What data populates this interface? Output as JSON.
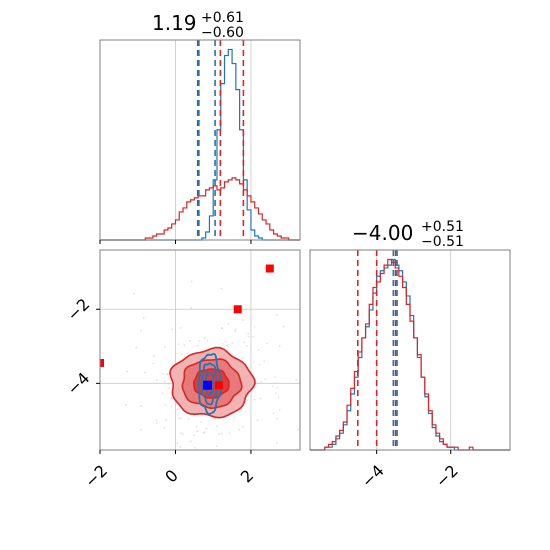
{
  "colors": {
    "red": "#d62728",
    "blue": "#1f77b4",
    "red_fill_outer": "#f2b3b3",
    "red_fill_mid": "#e8797a",
    "red_fill_inner": "#de3a3b",
    "marker_red": "#ff0000",
    "marker_blue": "#0000ff",
    "grid": "#c8c8c8",
    "axis": "#808080"
  },
  "chart_data": [
    {
      "panel": "marginal-x",
      "type": "histogram",
      "title": {
        "value": "1.19",
        "upper": "+0.61",
        "lower": "−0.60"
      },
      "xlim": [
        -2,
        3.3
      ],
      "grid": true,
      "series": [
        {
          "name": "",
          "color": "#1f77b4",
          "x_start": -2.0,
          "bin_width": 0.1,
          "counts": [
            0,
            0,
            0,
            0,
            0,
            0,
            0,
            0,
            0,
            0,
            0,
            0,
            0,
            0,
            0,
            0,
            0,
            0,
            0,
            0,
            0,
            0,
            0,
            0,
            0,
            0,
            0,
            1,
            4,
            12,
            30,
            55,
            78,
            92,
            95,
            88,
            75,
            55,
            30,
            15,
            5,
            2,
            1,
            0,
            0,
            0,
            0,
            0,
            0,
            0,
            0,
            0,
            0
          ]
        },
        {
          "name": "",
          "color": "#d62728",
          "x_start": -2.0,
          "bin_width": 0.1,
          "counts": [
            0,
            0,
            0,
            0,
            0,
            0,
            0,
            0,
            0,
            0,
            0,
            0,
            1,
            1,
            2,
            3,
            3,
            5,
            6,
            8,
            10,
            14,
            16,
            19,
            20,
            21,
            22,
            22,
            25,
            26,
            27,
            25,
            26,
            29,
            30,
            31,
            30,
            28,
            25,
            22,
            19,
            16,
            13,
            10,
            8,
            5,
            3,
            2,
            1,
            1,
            0,
            0,
            0
          ]
        }
      ],
      "quantile_lines": [
        {
          "x": 0.59,
          "color": "#d62728"
        },
        {
          "x": 1.19,
          "color": "#d62728"
        },
        {
          "x": 1.8,
          "color": "#d62728"
        },
        {
          "x": 0.62,
          "color": "#1f77b4"
        },
        {
          "x": 1.05,
          "color": "#1f77b4"
        }
      ]
    },
    {
      "panel": "marginal-y",
      "type": "histogram",
      "title": {
        "value": "−4.00",
        "upper": "+0.51",
        "lower": "−0.51"
      },
      "xlim": [
        -5.8,
        -0.4
      ],
      "xticks": [
        -4,
        -2
      ],
      "grid": true,
      "series": [
        {
          "name": "",
          "color": "#1f77b4",
          "x_start": -5.8,
          "bin_width": 0.1,
          "counts": [
            0,
            0,
            0,
            0,
            1,
            1,
            2,
            4,
            6,
            9,
            14,
            20,
            26,
            33,
            40,
            44,
            50,
            56,
            62,
            64,
            65,
            66,
            68,
            66,
            64,
            60,
            55,
            48,
            40,
            33,
            26,
            19,
            13,
            8,
            5,
            3,
            2,
            1,
            1,
            0,
            0,
            0,
            0,
            0,
            0,
            0,
            0,
            0,
            0,
            0,
            0,
            0,
            0,
            0
          ]
        },
        {
          "name": "",
          "color": "#d62728",
          "x_start": -5.8,
          "bin_width": 0.1,
          "counts": [
            0,
            0,
            0,
            0,
            1,
            2,
            3,
            5,
            7,
            10,
            16,
            22,
            28,
            35,
            40,
            45,
            52,
            58,
            60,
            63,
            66,
            68,
            67,
            65,
            62,
            58,
            52,
            46,
            40,
            34,
            26,
            20,
            14,
            9,
            6,
            4,
            2,
            1,
            1,
            1,
            0,
            0,
            0,
            1,
            0,
            0,
            0,
            0,
            0,
            0,
            0,
            0,
            0,
            0
          ]
        }
      ],
      "quantile_lines": [
        {
          "x": -4.51,
          "color": "#d62728"
        },
        {
          "x": -4.0,
          "color": "#d62728"
        },
        {
          "x": -3.49,
          "color": "#d62728"
        },
        {
          "x": -3.55,
          "color": "#1f77b4"
        },
        {
          "x": -3.45,
          "color": "#1f77b4"
        }
      ]
    },
    {
      "panel": "joint",
      "type": "scatter",
      "xlim": [
        -2,
        3.3
      ],
      "ylim": [
        -5.8,
        -0.4
      ],
      "xticks": [
        -2,
        0,
        2
      ],
      "yticks": [
        -4,
        -2
      ],
      "grid": true,
      "grid_lines": {
        "x": [
          0,
          2
        ],
        "y": [
          -4,
          -2
        ]
      },
      "red_density_center": [
        0.95,
        -4.0
      ],
      "red_density_sigma": [
        0.62,
        0.52
      ],
      "blue_density_center": [
        0.9,
        -4.0
      ],
      "blue_density_sigma": [
        0.18,
        0.5
      ],
      "red_square_markers": [
        [
          2.5,
          -0.9
        ],
        [
          1.65,
          -2.0
        ],
        [
          -2.0,
          -3.45
        ],
        [
          1.15,
          -4.05
        ]
      ],
      "blue_square_marker": [
        0.85,
        -4.05
      ]
    }
  ]
}
